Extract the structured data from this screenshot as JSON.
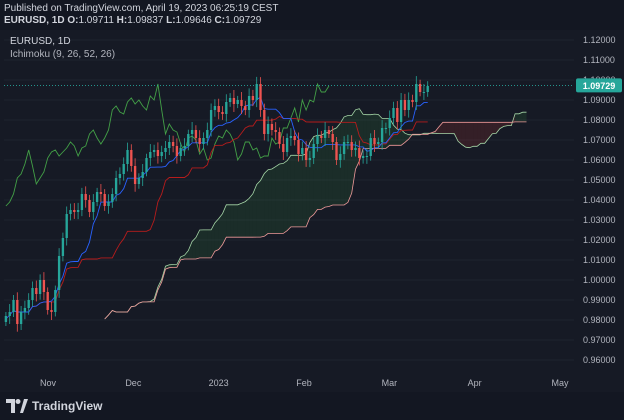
{
  "header": {
    "published": "Published on TradingView.com, April 19, 2023 06:25:19 CEST",
    "symbol_line": "EURUSD, 1D",
    "ohlc": {
      "o_label": "O:",
      "o": "1.09711",
      "h_label": "H:",
      "h": "1.09837",
      "l_label": "L:",
      "l": "1.09646",
      "c_label": "C:",
      "c": "1.09729"
    }
  },
  "legend": {
    "symbol": "EURUSD, 1D",
    "indicator": "Ichimoku (9, 26, 52, 26)"
  },
  "footer": {
    "brand": "TradingView"
  },
  "colors": {
    "bg": "#161a25",
    "up": "#ef5350",
    "down": "#26a69a",
    "conversion": "#2962ff",
    "base": "#b71c1c",
    "lagging": "#43a047",
    "spanA": "#a5d6a7",
    "spanB": "#ef9a9a",
    "price_tag": "#26a69a"
  },
  "chart_data": {
    "type": "candlestick",
    "symbol": "EURUSD",
    "timeframe": "1D",
    "indicator": "Ichimoku (9, 26, 52, 26)",
    "ylim": [
      0.955,
      1.125
    ],
    "y_ticks": [
      "1.12000",
      "1.11000",
      "1.10000",
      "1.09000",
      "1.08000",
      "1.07000",
      "1.06000",
      "1.05000",
      "1.04000",
      "1.03000",
      "1.02000",
      "1.01000",
      "1.00000",
      "0.99000",
      "0.98000",
      "0.97000",
      "0.96000"
    ],
    "x_ticks": [
      "Nov",
      "Dec",
      "2023",
      "Feb",
      "Mar",
      "Apr",
      "May"
    ],
    "current_price": "1.09729",
    "close_series": [
      0.982,
      0.984,
      0.99,
      0.978,
      0.984,
      0.986,
      0.99,
      0.996,
      0.993,
      1.0,
      0.994,
      0.985,
      0.984,
      0.995,
      1.012,
      1.021,
      1.033,
      1.035,
      1.034,
      1.035,
      1.043,
      1.04,
      1.034,
      1.039,
      1.044,
      1.043,
      1.037,
      1.039,
      1.043,
      1.051,
      1.053,
      1.058,
      1.065,
      1.057,
      1.048,
      1.051,
      1.054,
      1.061,
      1.064,
      1.065,
      1.062,
      1.064,
      1.066,
      1.069,
      1.067,
      1.062,
      1.066,
      1.067,
      1.073,
      1.075,
      1.071,
      1.068,
      1.071,
      1.075,
      1.085,
      1.087,
      1.084,
      1.083,
      1.089,
      1.091,
      1.088,
      1.09,
      1.087,
      1.085,
      1.092,
      1.09,
      1.098,
      1.085,
      1.073,
      1.078,
      1.075,
      1.074,
      1.068,
      1.064,
      1.071,
      1.072,
      1.07,
      1.063,
      1.066,
      1.06,
      1.061,
      1.068,
      1.072,
      1.071,
      1.075,
      1.073,
      1.069,
      1.06,
      1.063,
      1.069,
      1.069,
      1.065,
      1.066,
      1.061,
      1.062,
      1.062,
      1.071,
      1.068,
      1.069,
      1.076,
      1.076,
      1.081,
      1.086,
      1.079,
      1.09,
      1.085,
      1.09,
      1.089,
      1.098,
      1.094,
      1.094,
      1.097
    ]
  }
}
